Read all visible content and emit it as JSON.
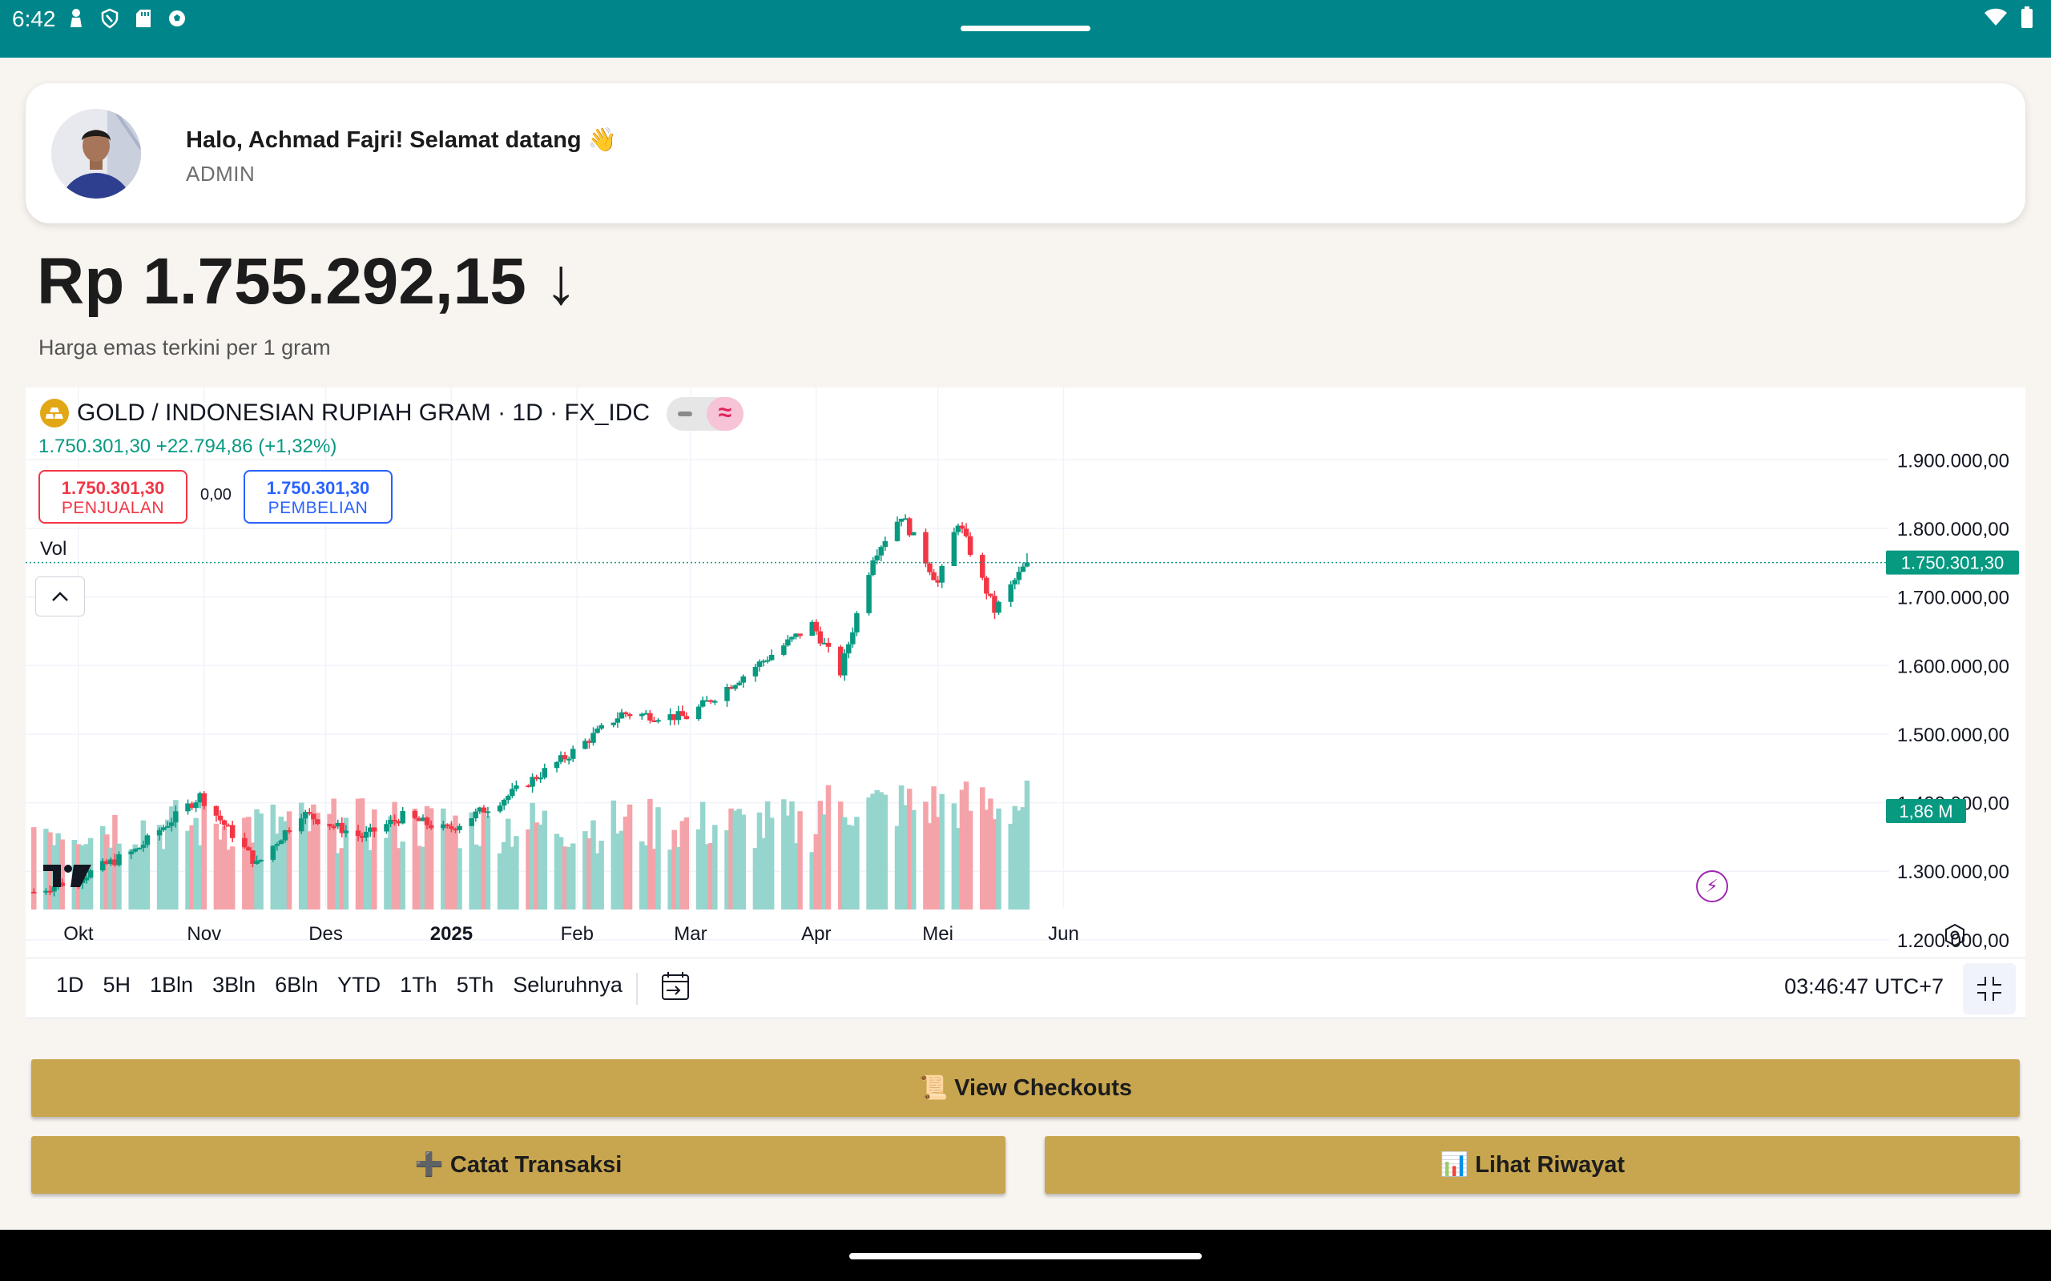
{
  "status_bar": {
    "time": "6:42",
    "left_icons": [
      "person-icon",
      "shield-icon",
      "sd-card-icon",
      "soccer-ball-icon"
    ],
    "right_icons": [
      "wifi-icon",
      "battery-icon"
    ]
  },
  "profile": {
    "greeting": "Halo, Achmad Fajri! Selamat datang 👋",
    "role": "ADMIN"
  },
  "price": {
    "value": "Rp 1.755.292,15 ↓",
    "subtitle": "Harga emas terkini per 1 gram"
  },
  "chart_header": {
    "symbol": "GOLD / INDONESIAN RUPIAH GRAM · 1D · FX_IDC",
    "quote": "1.750.301,30  +22.794,86 (+1,32%)",
    "sell_value": "1.750.301,30",
    "sell_label": "PENJUALAN",
    "spread": "0,00",
    "buy_value": "1.750.301,30",
    "buy_label": "PEMBELIAN",
    "vol_label": "Vol"
  },
  "chart_data": {
    "type": "candlestick",
    "y_ticks": [
      "1.900.000,00",
      "1.800.000,00",
      "1.700.000,00",
      "1.600.000,00",
      "1.500.000,00",
      "1.400.000,00",
      "1.300.000,00",
      "1.200.000,00"
    ],
    "y_tick_values": [
      1900000,
      1800000,
      1700000,
      1600000,
      1500000,
      1400000,
      1300000,
      1200000
    ],
    "ylim": [
      1180000,
      1925000
    ],
    "x_ticks": [
      "Okt",
      "Nov",
      "Des",
      "2025",
      "Feb",
      "Mar",
      "Apr",
      "Mei",
      "Jun"
    ],
    "last_price_label": "1.750.301,30",
    "last_price": 1750301.3,
    "volume_label": "1,86 M",
    "anchors": [
      {
        "date": "2024-09-20",
        "close": 1270000
      },
      {
        "date": "2024-10-01",
        "close": 1290000
      },
      {
        "date": "2024-10-15",
        "close": 1330000
      },
      {
        "date": "2024-10-31",
        "close": 1410000
      },
      {
        "date": "2024-11-10",
        "close": 1340000
      },
      {
        "date": "2024-11-14",
        "close": 1310000
      },
      {
        "date": "2024-11-25",
        "close": 1385000
      },
      {
        "date": "2024-12-10",
        "close": 1350000
      },
      {
        "date": "2024-12-20",
        "close": 1380000
      },
      {
        "date": "2024-12-31",
        "close": 1360000
      },
      {
        "date": "2025-01-15",
        "close": 1410000
      },
      {
        "date": "2025-01-30",
        "close": 1470000
      },
      {
        "date": "2025-02-12",
        "close": 1530000
      },
      {
        "date": "2025-02-28",
        "close": 1525000
      },
      {
        "date": "2025-03-15",
        "close": 1590000
      },
      {
        "date": "2025-03-31",
        "close": 1660000
      },
      {
        "date": "2025-04-07",
        "close": 1590000
      },
      {
        "date": "2025-04-15",
        "close": 1760000
      },
      {
        "date": "2025-04-22",
        "close": 1820000
      },
      {
        "date": "2025-05-01",
        "close": 1720000
      },
      {
        "date": "2025-05-06",
        "close": 1810000
      },
      {
        "date": "2025-05-15",
        "close": 1680000
      },
      {
        "date": "2025-05-23",
        "close": 1750301
      }
    ]
  },
  "range_buttons": [
    "1D",
    "5H",
    "1Bln",
    "3Bln",
    "6Bln",
    "YTD",
    "1Th",
    "5Th",
    "Seluruhnya"
  ],
  "clock": "03:46:47 UTC+7",
  "buttons": {
    "checkouts": "📜 View Checkouts",
    "catat": "➕ Catat Transaksi",
    "riwayat": "📊 Lihat Riwayat"
  },
  "colors": {
    "status_bar": "#00868a",
    "up": "#089981",
    "down": "#f23645",
    "vol_up": "#95d5cd",
    "vol_down": "#f4a3a9",
    "gold_button": "#c8a64f",
    "background": "#f8f4f0"
  }
}
